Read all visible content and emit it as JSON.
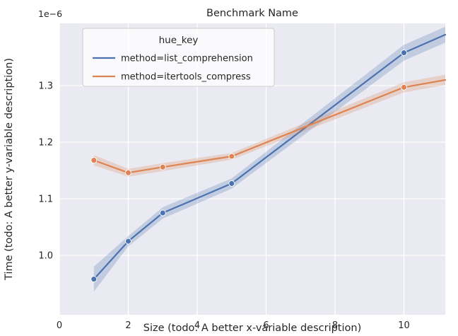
{
  "theme": {
    "figure_background": "#ffffff",
    "axes_background": "#eaeaf2",
    "grid_color": "#ffffff",
    "text_color": "#262626",
    "tick_label_color": "#262626",
    "legend_face_color": "#ffffff",
    "legend_edge_color": "#cccccc"
  },
  "chart_data": {
    "type": "line",
    "title": "Benchmark Name",
    "xlabel": "Size (todo: A better x-variable description)",
    "ylabel": "Time (todo: A better y-variable description)",
    "y_axis_offset_text": "1e−6",
    "grid": true,
    "legend": {
      "title": "hue_key",
      "position": "upper left"
    },
    "xlim": [
      0,
      11.2
    ],
    "ylim": [
      0.895,
      1.41
    ],
    "xticks": [
      0,
      2,
      4,
      6,
      8,
      10
    ],
    "yticks": [
      "1.0",
      "1.1",
      "1.2",
      "1.3"
    ],
    "series": [
      {
        "name": "method=list_comprehension",
        "color": "#4c72b0",
        "x": [
          1,
          2,
          3,
          5,
          10
        ],
        "y": [
          0.958,
          1.025,
          1.075,
          1.127,
          1.358
        ],
        "ci_halfwidth": [
          0.022,
          0.009,
          0.01,
          0.009,
          0.014
        ],
        "line_end": {
          "x": 11.2,
          "y": 1.39,
          "ci_halfwidth": 0.014
        }
      },
      {
        "name": "method=itertools_compress",
        "color": "#dd8452",
        "x": [
          1,
          2,
          3,
          5,
          10
        ],
        "y": [
          1.168,
          1.146,
          1.156,
          1.175,
          1.297
        ],
        "ci_halfwidth": [
          0.009,
          0.007,
          0.007,
          0.006,
          0.009
        ],
        "line_end": {
          "x": 11.2,
          "y": 1.31,
          "ci_halfwidth": 0.009
        }
      }
    ]
  }
}
